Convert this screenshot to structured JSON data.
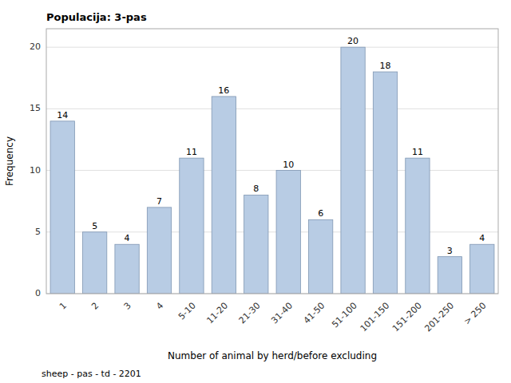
{
  "chart_data": {
    "type": "bar",
    "title": "Populacija: 3-pas",
    "x_label": "Number of animal by herd/before excluding",
    "y_label": "Frequency",
    "annotations": [
      "sheep - pas - td - 2201"
    ],
    "categories": [
      "1",
      "2",
      "3",
      "4",
      "5-10",
      "11-20",
      "21-30",
      "31-40",
      "41-50",
      "51-100",
      "101-150",
      "151-200",
      "201-250",
      "> 250"
    ],
    "values": [
      14,
      5,
      4,
      7,
      11,
      16,
      8,
      10,
      6,
      20,
      18,
      11,
      3,
      4
    ],
    "color": "#b8cce4",
    "ylim": [
      0,
      21.5
    ],
    "yticks": [
      0,
      5,
      10,
      15,
      20
    ],
    "grid": true,
    "data_labels": true
  }
}
